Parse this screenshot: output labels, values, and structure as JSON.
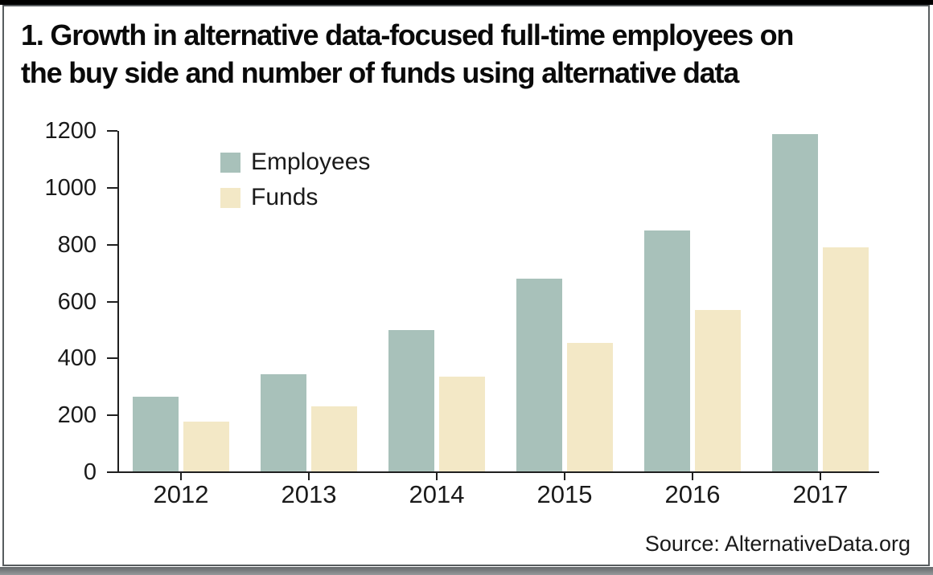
{
  "header": {
    "line1": "1. Growth in alternative data-focused full-time employees on",
    "line2": "the buy side and number of funds using alternative data"
  },
  "source": {
    "label": "Source: AlternativeData.org"
  },
  "colors": {
    "employees": "#a8c1ba",
    "funds": "#f3e8c6",
    "axis": "#1f1f1f",
    "top_rule": "#000000",
    "bottom_rule": "#7e8385",
    "panel_border": "#575c5e"
  },
  "chart_data": {
    "type": "bar",
    "title": "1. Growth in alternative data-focused full-time employees on the buy side and number of funds using alternative data",
    "categories": [
      "2012",
      "2013",
      "2014",
      "2015",
      "2016",
      "2017"
    ],
    "series": [
      {
        "name": "Employees",
        "color": "#a8c1ba",
        "values": [
          265,
          345,
          500,
          680,
          850,
          1190
        ]
      },
      {
        "name": "Funds",
        "color": "#f3e8c6",
        "values": [
          178,
          232,
          335,
          455,
          570,
          790
        ]
      }
    ],
    "xlabel": "",
    "ylabel": "",
    "ylim": [
      0,
      1200
    ],
    "yticks": [
      0,
      200,
      400,
      600,
      800,
      1000,
      1200
    ],
    "grid": false,
    "legend_position": "upper-left-inside",
    "source": "Source: AlternativeData.org"
  }
}
